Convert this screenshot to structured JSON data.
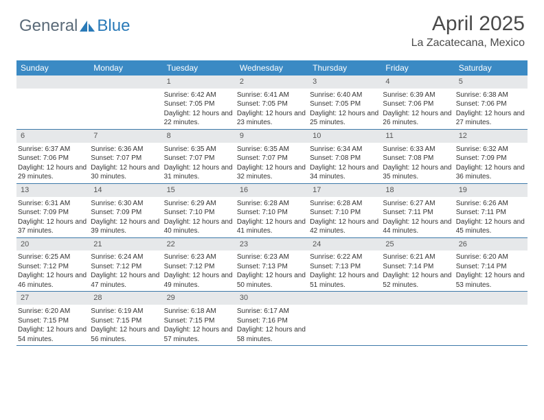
{
  "branding": {
    "logo_general": "General",
    "logo_blue": "Blue",
    "logo_color_general": "#5a6a78",
    "logo_color_blue": "#2a7ab8"
  },
  "header": {
    "title": "April 2025",
    "location": "La Zacatecana, Mexico"
  },
  "calendar": {
    "header_bg": "#3b8ac4",
    "header_text_color": "#ffffff",
    "week_border_color": "#3b78a8",
    "daynum_bg": "#e6e8ea",
    "daynames": [
      "Sunday",
      "Monday",
      "Tuesday",
      "Wednesday",
      "Thursday",
      "Friday",
      "Saturday"
    ],
    "weeks": [
      [
        {
          "day": "",
          "empty": true
        },
        {
          "day": "",
          "empty": true
        },
        {
          "day": "1",
          "sunrise": "Sunrise: 6:42 AM",
          "sunset": "Sunset: 7:05 PM",
          "daylight": "Daylight: 12 hours and 22 minutes."
        },
        {
          "day": "2",
          "sunrise": "Sunrise: 6:41 AM",
          "sunset": "Sunset: 7:05 PM",
          "daylight": "Daylight: 12 hours and 23 minutes."
        },
        {
          "day": "3",
          "sunrise": "Sunrise: 6:40 AM",
          "sunset": "Sunset: 7:05 PM",
          "daylight": "Daylight: 12 hours and 25 minutes."
        },
        {
          "day": "4",
          "sunrise": "Sunrise: 6:39 AM",
          "sunset": "Sunset: 7:06 PM",
          "daylight": "Daylight: 12 hours and 26 minutes."
        },
        {
          "day": "5",
          "sunrise": "Sunrise: 6:38 AM",
          "sunset": "Sunset: 7:06 PM",
          "daylight": "Daylight: 12 hours and 27 minutes."
        }
      ],
      [
        {
          "day": "6",
          "sunrise": "Sunrise: 6:37 AM",
          "sunset": "Sunset: 7:06 PM",
          "daylight": "Daylight: 12 hours and 29 minutes."
        },
        {
          "day": "7",
          "sunrise": "Sunrise: 6:36 AM",
          "sunset": "Sunset: 7:07 PM",
          "daylight": "Daylight: 12 hours and 30 minutes."
        },
        {
          "day": "8",
          "sunrise": "Sunrise: 6:35 AM",
          "sunset": "Sunset: 7:07 PM",
          "daylight": "Daylight: 12 hours and 31 minutes."
        },
        {
          "day": "9",
          "sunrise": "Sunrise: 6:35 AM",
          "sunset": "Sunset: 7:07 PM",
          "daylight": "Daylight: 12 hours and 32 minutes."
        },
        {
          "day": "10",
          "sunrise": "Sunrise: 6:34 AM",
          "sunset": "Sunset: 7:08 PM",
          "daylight": "Daylight: 12 hours and 34 minutes."
        },
        {
          "day": "11",
          "sunrise": "Sunrise: 6:33 AM",
          "sunset": "Sunset: 7:08 PM",
          "daylight": "Daylight: 12 hours and 35 minutes."
        },
        {
          "day": "12",
          "sunrise": "Sunrise: 6:32 AM",
          "sunset": "Sunset: 7:09 PM",
          "daylight": "Daylight: 12 hours and 36 minutes."
        }
      ],
      [
        {
          "day": "13",
          "sunrise": "Sunrise: 6:31 AM",
          "sunset": "Sunset: 7:09 PM",
          "daylight": "Daylight: 12 hours and 37 minutes."
        },
        {
          "day": "14",
          "sunrise": "Sunrise: 6:30 AM",
          "sunset": "Sunset: 7:09 PM",
          "daylight": "Daylight: 12 hours and 39 minutes."
        },
        {
          "day": "15",
          "sunrise": "Sunrise: 6:29 AM",
          "sunset": "Sunset: 7:10 PM",
          "daylight": "Daylight: 12 hours and 40 minutes."
        },
        {
          "day": "16",
          "sunrise": "Sunrise: 6:28 AM",
          "sunset": "Sunset: 7:10 PM",
          "daylight": "Daylight: 12 hours and 41 minutes."
        },
        {
          "day": "17",
          "sunrise": "Sunrise: 6:28 AM",
          "sunset": "Sunset: 7:10 PM",
          "daylight": "Daylight: 12 hours and 42 minutes."
        },
        {
          "day": "18",
          "sunrise": "Sunrise: 6:27 AM",
          "sunset": "Sunset: 7:11 PM",
          "daylight": "Daylight: 12 hours and 44 minutes."
        },
        {
          "day": "19",
          "sunrise": "Sunrise: 6:26 AM",
          "sunset": "Sunset: 7:11 PM",
          "daylight": "Daylight: 12 hours and 45 minutes."
        }
      ],
      [
        {
          "day": "20",
          "sunrise": "Sunrise: 6:25 AM",
          "sunset": "Sunset: 7:12 PM",
          "daylight": "Daylight: 12 hours and 46 minutes."
        },
        {
          "day": "21",
          "sunrise": "Sunrise: 6:24 AM",
          "sunset": "Sunset: 7:12 PM",
          "daylight": "Daylight: 12 hours and 47 minutes."
        },
        {
          "day": "22",
          "sunrise": "Sunrise: 6:23 AM",
          "sunset": "Sunset: 7:12 PM",
          "daylight": "Daylight: 12 hours and 49 minutes."
        },
        {
          "day": "23",
          "sunrise": "Sunrise: 6:23 AM",
          "sunset": "Sunset: 7:13 PM",
          "daylight": "Daylight: 12 hours and 50 minutes."
        },
        {
          "day": "24",
          "sunrise": "Sunrise: 6:22 AM",
          "sunset": "Sunset: 7:13 PM",
          "daylight": "Daylight: 12 hours and 51 minutes."
        },
        {
          "day": "25",
          "sunrise": "Sunrise: 6:21 AM",
          "sunset": "Sunset: 7:14 PM",
          "daylight": "Daylight: 12 hours and 52 minutes."
        },
        {
          "day": "26",
          "sunrise": "Sunrise: 6:20 AM",
          "sunset": "Sunset: 7:14 PM",
          "daylight": "Daylight: 12 hours and 53 minutes."
        }
      ],
      [
        {
          "day": "27",
          "sunrise": "Sunrise: 6:20 AM",
          "sunset": "Sunset: 7:15 PM",
          "daylight": "Daylight: 12 hours and 54 minutes."
        },
        {
          "day": "28",
          "sunrise": "Sunrise: 6:19 AM",
          "sunset": "Sunset: 7:15 PM",
          "daylight": "Daylight: 12 hours and 56 minutes."
        },
        {
          "day": "29",
          "sunrise": "Sunrise: 6:18 AM",
          "sunset": "Sunset: 7:15 PM",
          "daylight": "Daylight: 12 hours and 57 minutes."
        },
        {
          "day": "30",
          "sunrise": "Sunrise: 6:17 AM",
          "sunset": "Sunset: 7:16 PM",
          "daylight": "Daylight: 12 hours and 58 minutes."
        },
        {
          "day": "",
          "empty": true
        },
        {
          "day": "",
          "empty": true
        },
        {
          "day": "",
          "empty": true
        }
      ]
    ]
  }
}
